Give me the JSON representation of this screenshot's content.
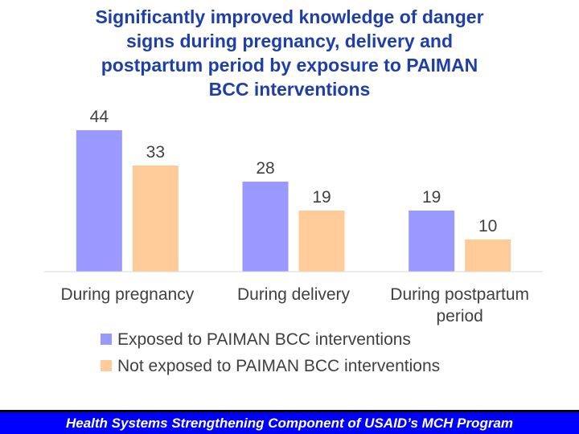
{
  "title_lines": [
    "Significantly improved knowledge of danger",
    "signs during pregnancy, delivery and",
    "postpartum period by exposure to PAIMAN",
    "BCC interventions"
  ],
  "footer": "Health Systems Strengthening Component of USAID’s MCH Program",
  "chart_data": {
    "type": "bar",
    "categories": [
      [
        "During pregnancy"
      ],
      [
        "During delivery"
      ],
      [
        "During postpartum",
        "period"
      ]
    ],
    "series": [
      {
        "name": "Exposed to PAIMAN BCC interventions",
        "values": [
          44,
          28,
          19
        ],
        "color": "#9999ff"
      },
      {
        "name": "Not exposed to PAIMAN BCC interventions",
        "values": [
          33,
          19,
          10
        ],
        "color": "#ffcc99"
      }
    ],
    "ylim": [
      0,
      50
    ],
    "grid": false,
    "legend_position": "bottom"
  }
}
